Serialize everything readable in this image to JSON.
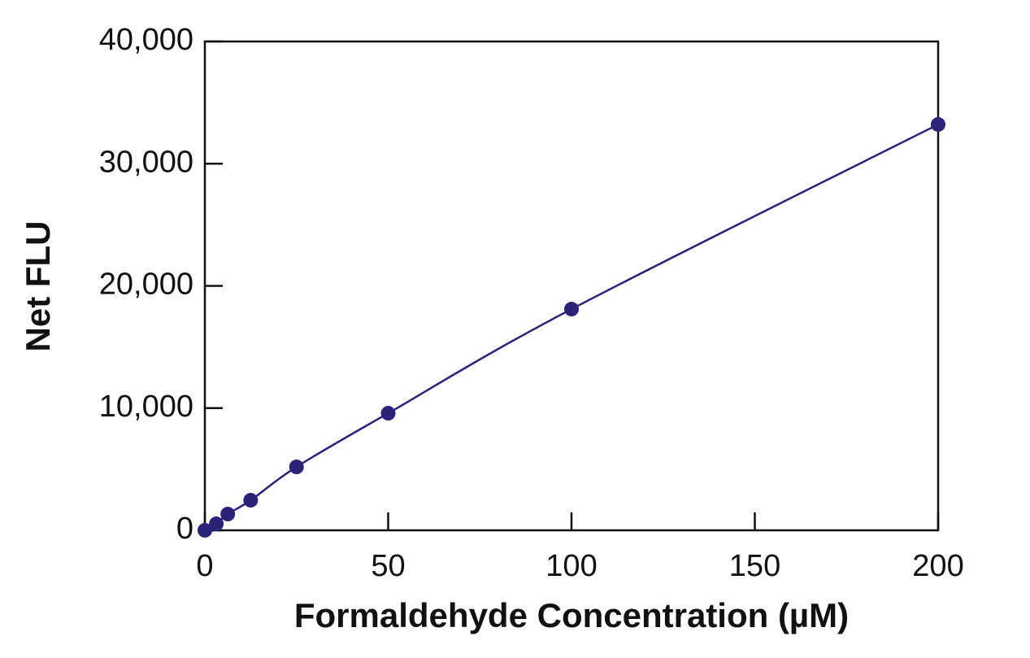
{
  "chart_data": {
    "type": "scatter",
    "x_label": "Formaldehyde Concentration (µM)",
    "y_label": "Net FLU",
    "color": "#2b2378",
    "series": [
      {
        "x": [
          0,
          3.125,
          6.25,
          12.5,
          25,
          50,
          100,
          200
        ],
        "values": [
          0,
          530,
          1330,
          2460,
          5190,
          9580,
          18100,
          33210
        ]
      }
    ],
    "xlim": [
      0,
      200
    ],
    "xticks": [
      0,
      50,
      100,
      150,
      200
    ],
    "ylim": [
      0,
      40000
    ],
    "yticks": [
      0,
      {
        "value": 10000,
        "label": "10,000"
      },
      {
        "value": 20000,
        "label": "20,000"
      },
      {
        "value": 30000,
        "label": "30,000"
      },
      {
        "value": 40000,
        "label": "40,000"
      }
    ]
  }
}
